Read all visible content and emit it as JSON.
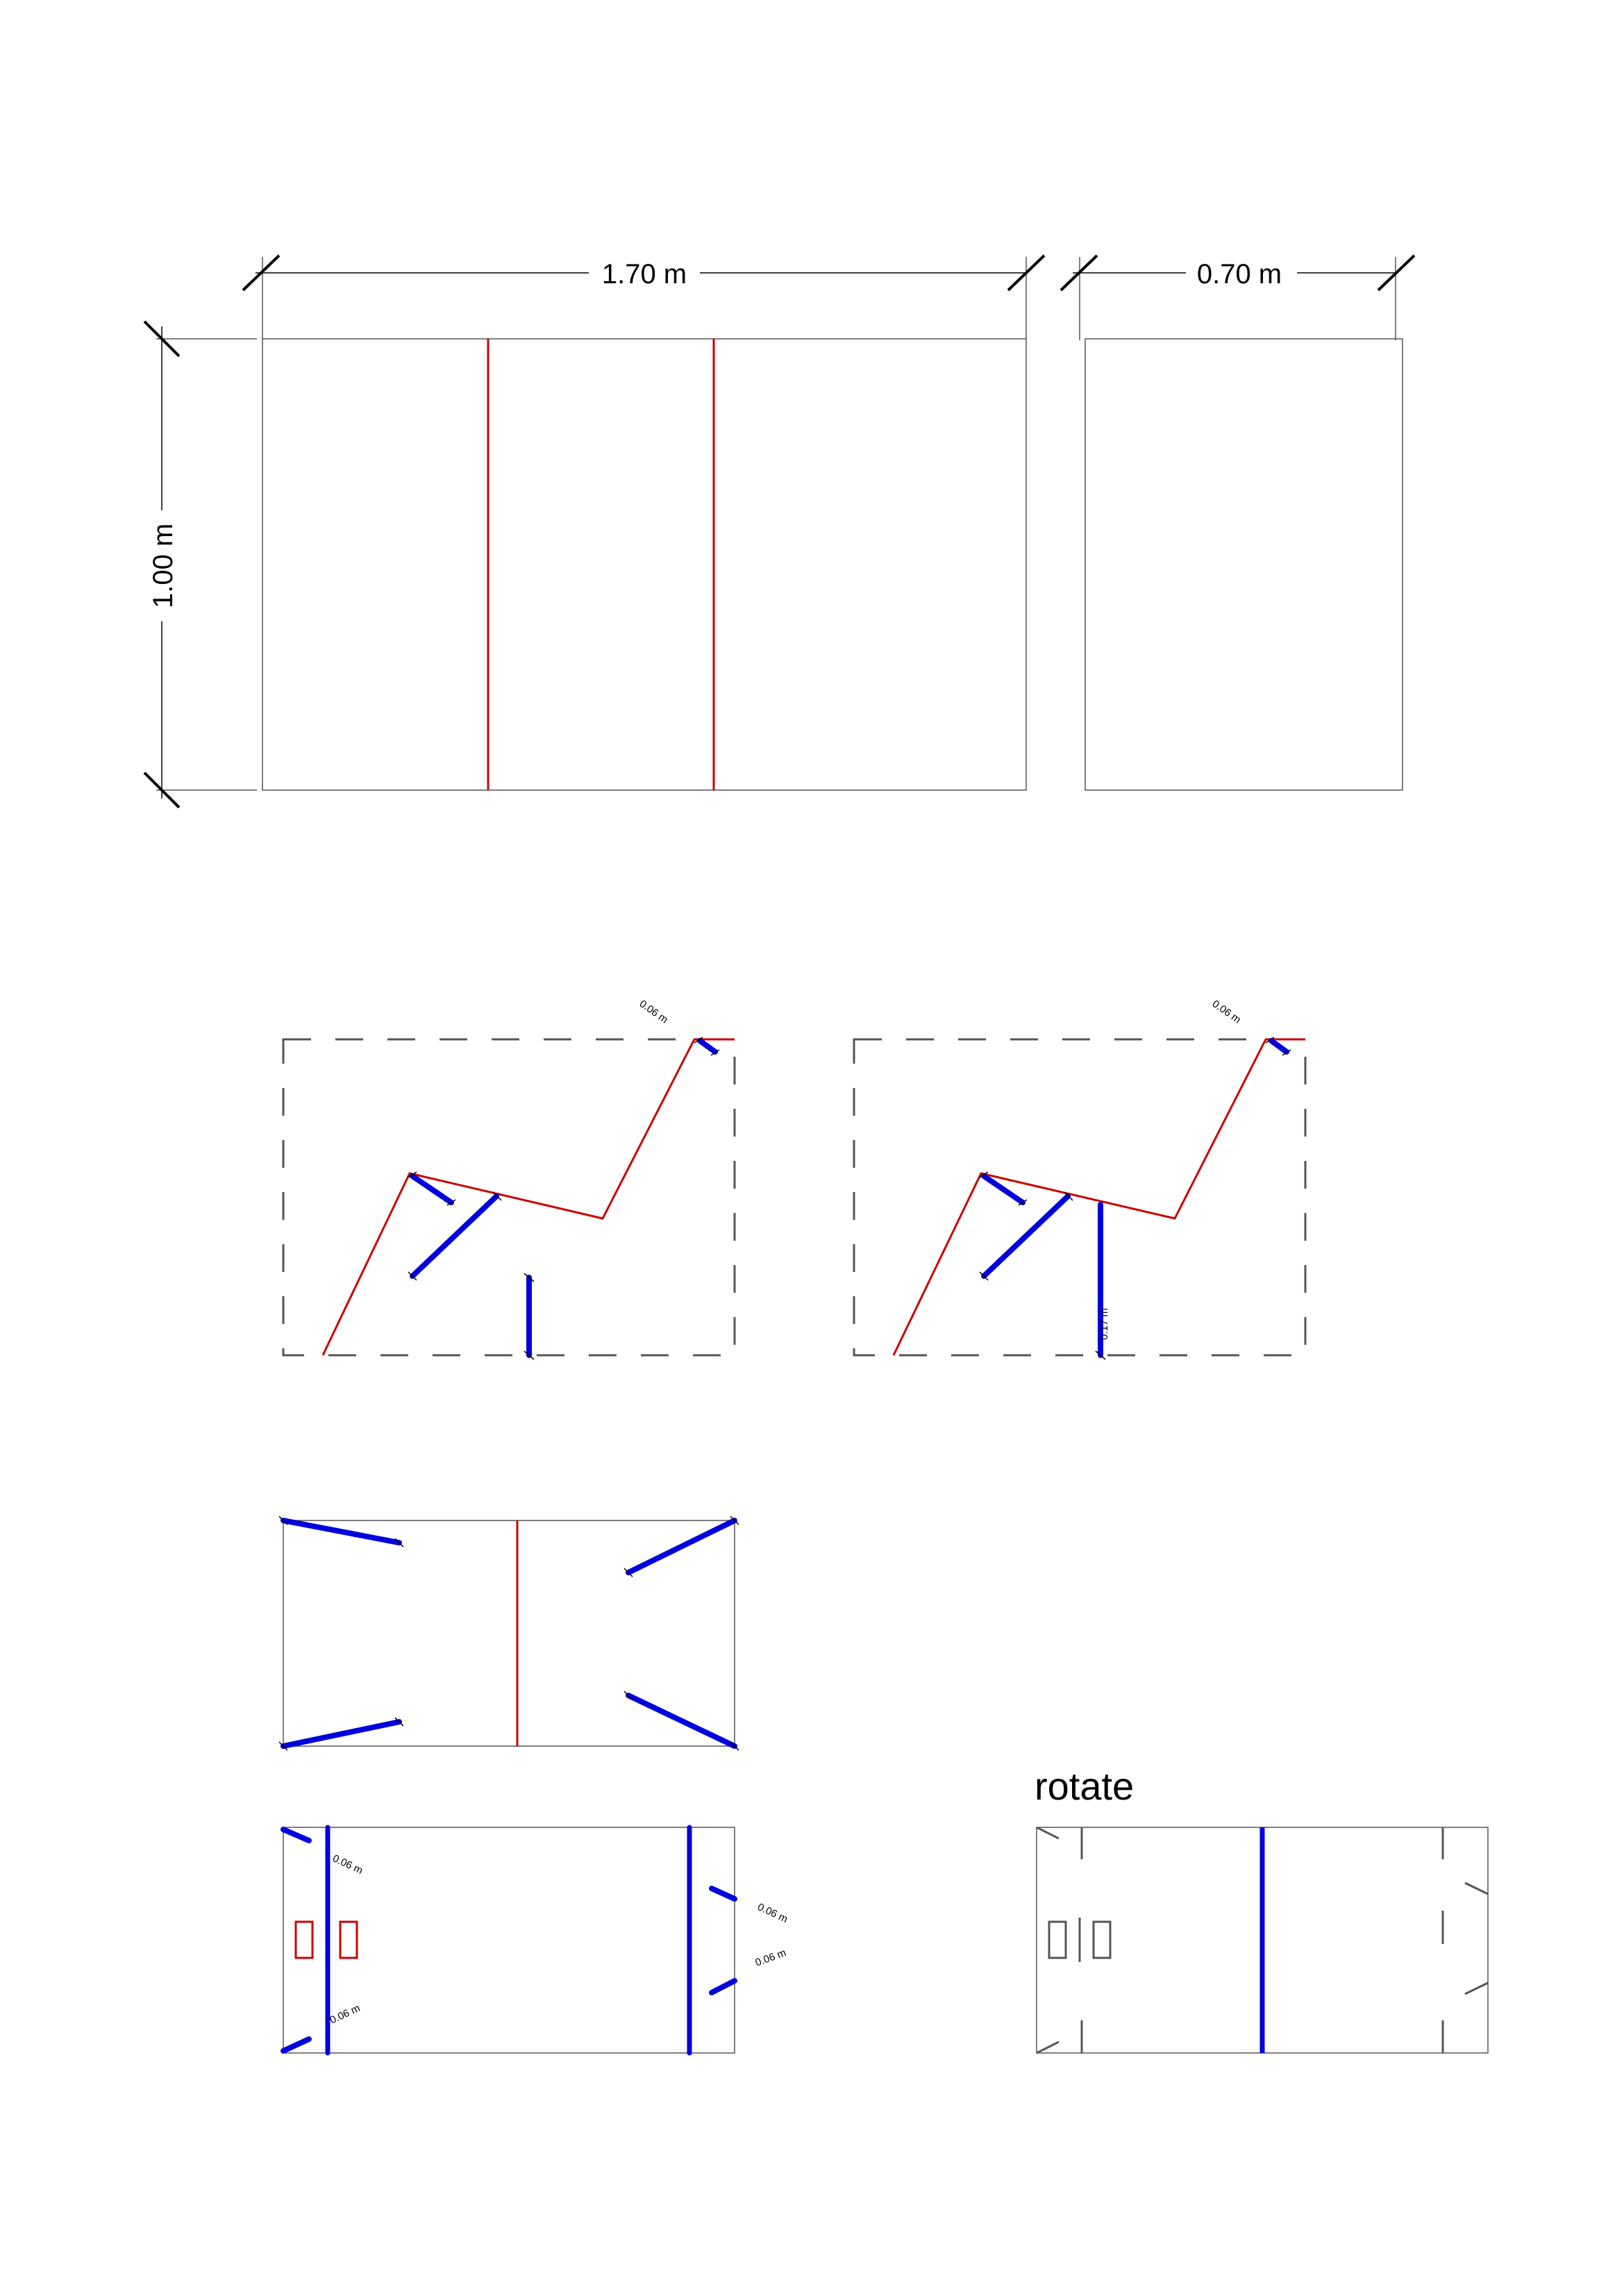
{
  "dimensions": {
    "overall_width": "1.70 m",
    "side_width": "0.70 m",
    "height": "1.00 m"
  },
  "annotations": {
    "corner_offset": "0.06 m",
    "vertical_segment": "0.17 m"
  },
  "labels": {
    "rotate": "rotate"
  },
  "colors": {
    "outline": "#555555",
    "fold_line": "#cc0000",
    "cut_line": "#0000dd",
    "dimension": "#000000"
  }
}
